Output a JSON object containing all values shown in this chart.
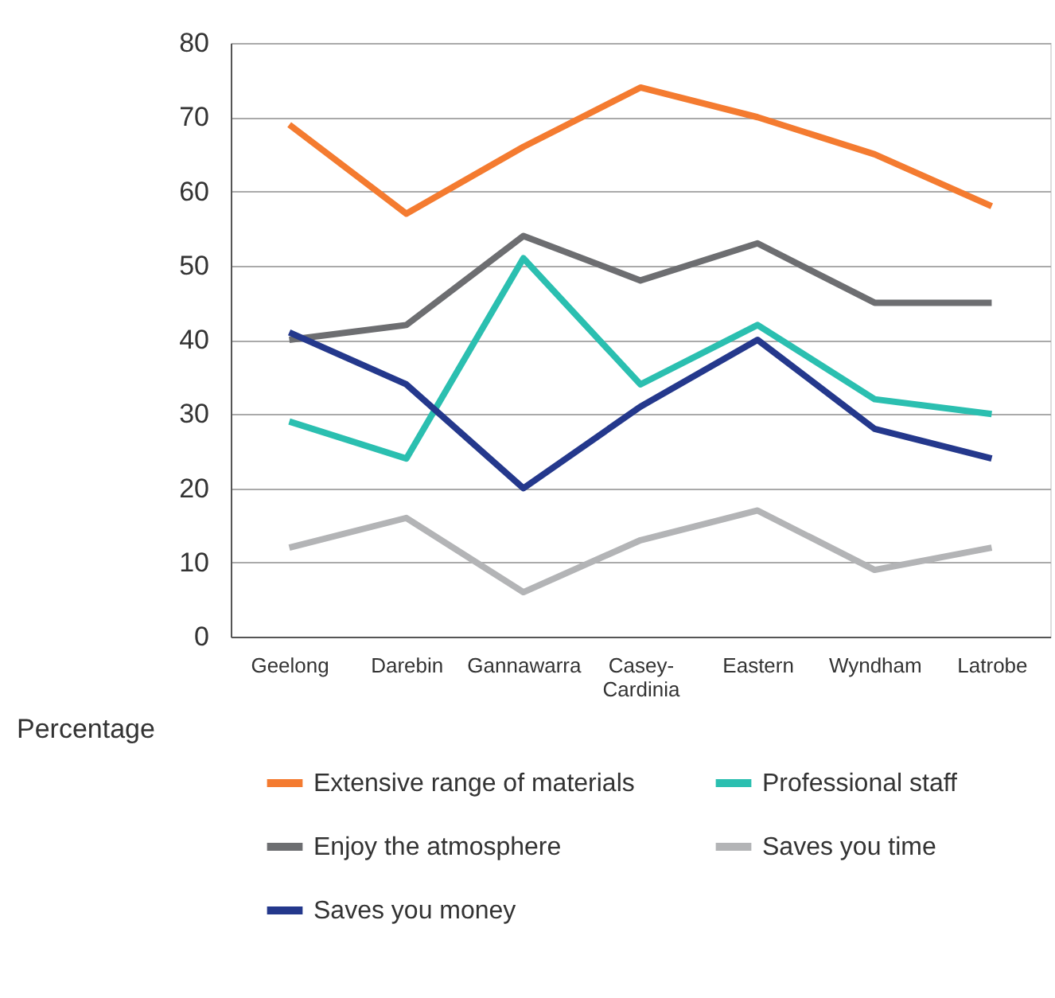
{
  "chart_data": {
    "type": "line",
    "ylabel": "Percentage",
    "categories": [
      "Geelong",
      "Darebin",
      "Gannawarra",
      "Casey-\nCardinia",
      "Eastern",
      "Wyndham",
      "Latrobe"
    ],
    "series": [
      {
        "name": "Extensive range of materials",
        "color": "#f47b30",
        "values": [
          69,
          57,
          66,
          74,
          70,
          65,
          58
        ]
      },
      {
        "name": "Professional staff",
        "color": "#2bbfb0",
        "values": [
          29,
          24,
          51,
          34,
          42,
          32,
          30
        ]
      },
      {
        "name": "Enjoy the atmosphere",
        "color": "#6d6e71",
        "values": [
          40,
          42,
          54,
          48,
          53,
          45,
          45
        ]
      },
      {
        "name": "Saves you time",
        "color": "#b3b4b6",
        "values": [
          12,
          16,
          6,
          13,
          17,
          9,
          12
        ]
      },
      {
        "name": "Saves you money",
        "color": "#24388c",
        "values": [
          41,
          34,
          20,
          31,
          40,
          28,
          24
        ]
      }
    ],
    "ylim": [
      0,
      80
    ],
    "yticks": [
      0,
      10,
      20,
      30,
      40,
      50,
      60,
      70,
      80
    ],
    "grid": "y",
    "legend": "bottom",
    "marker": "none",
    "line_style": "solid"
  }
}
